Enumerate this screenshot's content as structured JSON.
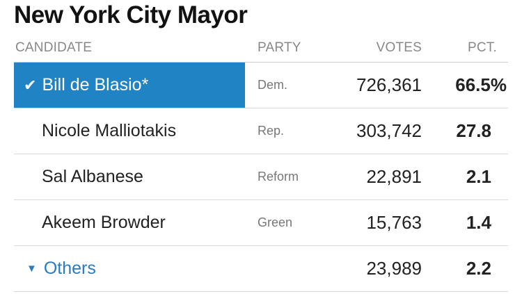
{
  "title": "New York City Mayor",
  "headers": {
    "candidate": "CANDIDATE",
    "party": "PARTY",
    "votes": "VOTES",
    "pct": "PCT."
  },
  "rows": [
    {
      "name": "Bill de Blasio*",
      "party": "Dem.",
      "votes": "726,361",
      "pct": "66.5%",
      "winner": true
    },
    {
      "name": "Nicole Malliotakis",
      "party": "Rep.",
      "votes": "303,742",
      "pct": "27.8"
    },
    {
      "name": "Sal Albanese",
      "party": "Reform",
      "votes": "22,891",
      "pct": "2.1"
    },
    {
      "name": "Akeem Browder",
      "party": "Green",
      "votes": "15,763",
      "pct": "1.4"
    }
  ],
  "others": {
    "label": "Others",
    "votes": "23,989",
    "pct": "2.2"
  },
  "icons": {
    "winner": "checkmark-icon",
    "expand": "triangle-down-icon"
  },
  "colors": {
    "winner_bg": "#1f83c4",
    "link": "#2a7bbf"
  }
}
